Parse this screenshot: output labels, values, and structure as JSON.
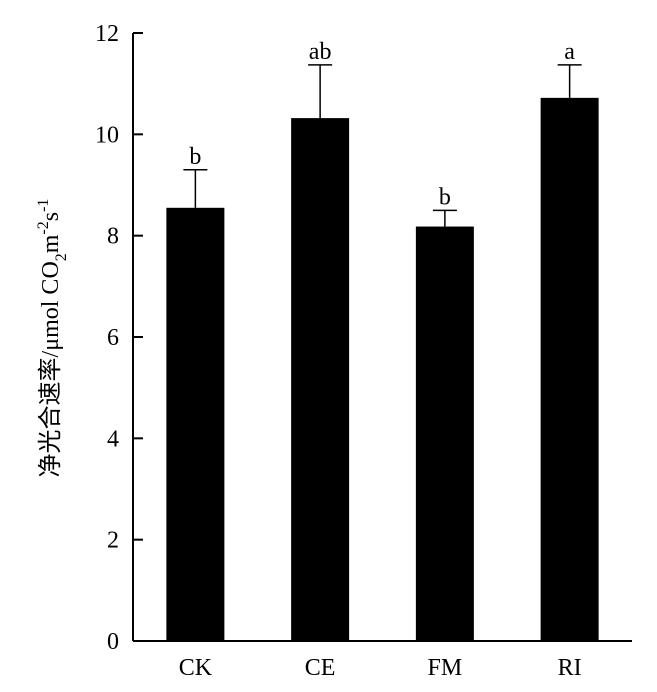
{
  "chart_data": {
    "type": "bar",
    "title": "",
    "xlabel": "",
    "ylabel": {
      "main": "净光合速率/μmol CO",
      "sub": "2",
      "mid": "m",
      "sup1": "-2",
      "tail": "s",
      "sup2": "-1"
    },
    "categories": [
      "CK",
      "CE",
      "FM",
      "RI"
    ],
    "values": [
      8.55,
      10.32,
      8.18,
      10.72
    ],
    "errors": [
      0.75,
      1.05,
      0.32,
      0.65
    ],
    "significance": [
      "b",
      "ab",
      "b",
      "a"
    ],
    "ylim": [
      0,
      12
    ],
    "yticks": [
      0,
      2,
      4,
      6,
      8,
      10,
      12
    ],
    "bar_color": "#000000",
    "grid": false,
    "legend": "none"
  }
}
